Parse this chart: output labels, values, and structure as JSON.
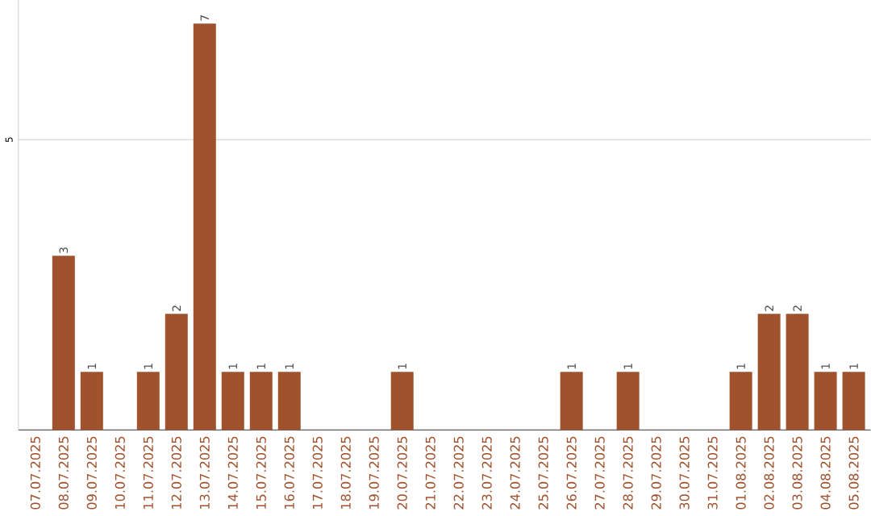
{
  "chart_data": {
    "type": "bar",
    "categories": [
      "07.07.2025",
      "08.07.2025",
      "09.07.2025",
      "10.07.2025",
      "11.07.2025",
      "12.07.2025",
      "13.07.2025",
      "14.07.2025",
      "15.07.2025",
      "16.07.2025",
      "17.07.2025",
      "18.07.2025",
      "19.07.2025",
      "20.07.2025",
      "21.07.2025",
      "22.07.2025",
      "23.07.2025",
      "24.07.2025",
      "25.07.2025",
      "26.07.2025",
      "27.07.2025",
      "28.07.2025",
      "29.07.2025",
      "30.07.2025",
      "31.07.2025",
      "01.08.2025",
      "02.08.2025",
      "03.08.2025",
      "04.08.2025",
      "05.08.2025"
    ],
    "values": [
      0,
      3,
      1,
      0,
      1,
      2,
      7,
      1,
      1,
      1,
      0,
      0,
      0,
      1,
      0,
      0,
      0,
      0,
      0,
      1,
      0,
      1,
      0,
      0,
      0,
      1,
      2,
      2,
      1,
      1
    ],
    "value_labels": [
      null,
      "3",
      "1",
      null,
      "1",
      "2",
      "7",
      "1",
      "1",
      "1",
      null,
      null,
      null,
      "1",
      null,
      null,
      null,
      null,
      null,
      "1",
      null,
      "1",
      null,
      null,
      null,
      "1",
      "2",
      "2",
      "1",
      "1"
    ],
    "color": "#a0522d",
    "ylim": [
      0,
      7.4
    ],
    "yticks": [
      5
    ],
    "grid": "y"
  }
}
